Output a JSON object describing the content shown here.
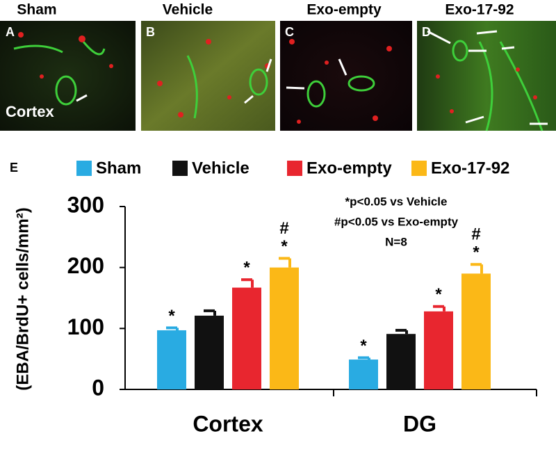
{
  "panels": [
    {
      "letter": "A",
      "title": "Sham",
      "label": "Cortex"
    },
    {
      "letter": "B",
      "title": "Vehicle"
    },
    {
      "letter": "C",
      "title": "Exo-empty"
    },
    {
      "letter": "D",
      "title": "Exo-17-92"
    }
  ],
  "chart_data": {
    "type": "bar",
    "panel_letter": "E",
    "y_label": "(EBA/BrdU+ cells/mm²)",
    "categories": [
      "Cortex",
      "DG"
    ],
    "series": [
      {
        "name": "Sham",
        "color": "#29abe2",
        "values": [
          97,
          49
        ],
        "errors": [
          4,
          3
        ],
        "markers": [
          [
            "*"
          ],
          [
            "*"
          ]
        ]
      },
      {
        "name": "Vehicle",
        "color": "#111111",
        "values": [
          121,
          91
        ],
        "errors": [
          8,
          6
        ],
        "markers": [
          [],
          []
        ]
      },
      {
        "name": "Exo-empty",
        "color": "#e8262f",
        "values": [
          167,
          128
        ],
        "errors": [
          13,
          8
        ],
        "markers": [
          [
            "*"
          ],
          [
            "*"
          ]
        ]
      },
      {
        "name": "Exo-17-92",
        "color": "#fbb817",
        "values": [
          200,
          190
        ],
        "errors": [
          15,
          15
        ],
        "markers": [
          [
            "#",
            "*"
          ],
          [
            "#",
            "*"
          ]
        ]
      }
    ],
    "ylim": [
      0,
      300
    ],
    "yticks": [
      0,
      100,
      200,
      300
    ],
    "annotations": [
      "*p<0.05 vs Vehicle",
      "#p<0.05 vs Exo-empty",
      "N=8"
    ]
  }
}
